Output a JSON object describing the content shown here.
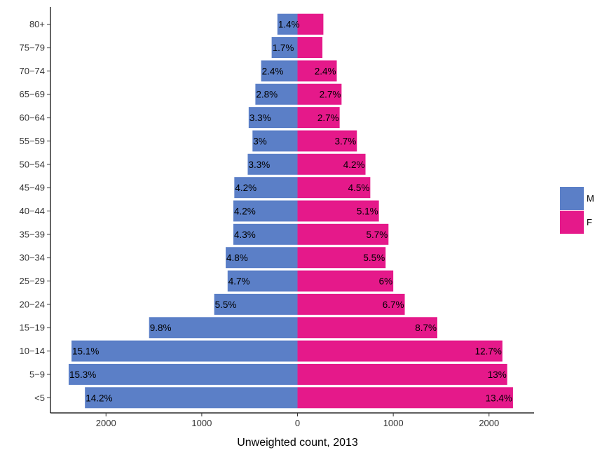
{
  "chart_data": {
    "type": "bar",
    "orientation": "horizontal-pyramid",
    "xlabel": "Unweighted count, 2013",
    "ylabel": "",
    "title": "",
    "x_ticks": [
      "2000",
      "1000",
      "0",
      "1000",
      "2000"
    ],
    "x_tick_values": [
      -2000,
      -1000,
      0,
      1000,
      2000
    ],
    "xlim": [
      -2580,
      2470
    ],
    "grid": false,
    "legend_position": "right",
    "categories": [
      "<5",
      "5−9",
      "10−14",
      "15−19",
      "20−24",
      "25−29",
      "30−34",
      "35−39",
      "40−44",
      "45−49",
      "50−54",
      "55−59",
      "60−64",
      "65−69",
      "70−74",
      "75−79",
      "80+"
    ],
    "series": [
      {
        "name": "M",
        "color": "#5b7fc7",
        "side": "left",
        "values": [
          2220,
          2390,
          2360,
          1550,
          870,
          730,
          750,
          670,
          670,
          660,
          520,
          470,
          510,
          440,
          380,
          270,
          210
        ],
        "labels": [
          "14.2%",
          "15.3%",
          "15.1%",
          "9.8%",
          "5.5%",
          "4.7%",
          "4.8%",
          "4.3%",
          "4.2%",
          "4.2%",
          "3.3%",
          "3%",
          "3.3%",
          "2.8%",
          "2.4%",
          "1.7%",
          "1.4%"
        ]
      },
      {
        "name": "F",
        "color": "#e5198a",
        "side": "right",
        "values": [
          2250,
          2190,
          2140,
          1460,
          1120,
          1000,
          920,
          950,
          850,
          760,
          710,
          620,
          440,
          460,
          410,
          260,
          270
        ],
        "labels": [
          "13.4%",
          "13%",
          "12.7%",
          "8.7%",
          "6.7%",
          "6%",
          "5.5%",
          "5.7%",
          "5.1%",
          "4.5%",
          "4.2%",
          "3.7%",
          "2.7%",
          "2.7%",
          "2.4%",
          "",
          ""
        ]
      }
    ]
  }
}
